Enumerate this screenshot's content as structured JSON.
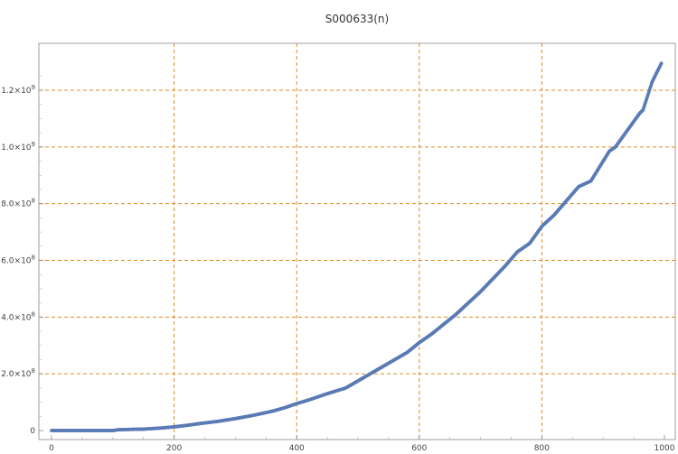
{
  "chart_data": {
    "type": "scatter",
    "title": "S000633(n)",
    "xlabel": "",
    "ylabel": "",
    "xlim": [
      0,
      1000
    ],
    "ylim": [
      0,
      1300000000
    ],
    "grid": true,
    "x_ticks": [
      0,
      200,
      400,
      600,
      800,
      1000
    ],
    "x_tick_labels": [
      "0",
      "200",
      "400",
      "600",
      "800",
      "1000"
    ],
    "y_ticks": [
      0,
      200000000,
      400000000,
      600000000,
      800000000,
      1000000000,
      1200000000
    ],
    "y_tick_labels": [
      {
        "mantissa": "0",
        "exponent": ""
      },
      {
        "mantissa": "2.0×10",
        "exponent": "8"
      },
      {
        "mantissa": "4.0×10",
        "exponent": "8"
      },
      {
        "mantissa": "6.0×10",
        "exponent": "8"
      },
      {
        "mantissa": "8.0×10",
        "exponent": "8"
      },
      {
        "mantissa": "1.0×10",
        "exponent": "9"
      },
      {
        "mantissa": "1.2×10",
        "exponent": "9"
      }
    ],
    "series": [
      {
        "color": "#5a7bb5",
        "x": [
          0,
          50,
          100,
          110,
          150,
          180,
          200,
          220,
          240,
          270,
          300,
          330,
          360,
          380,
          400,
          420,
          450,
          480,
          500,
          520,
          540,
          560,
          580,
          600,
          620,
          640,
          660,
          680,
          700,
          720,
          740,
          760,
          780,
          800,
          820,
          840,
          860,
          880,
          900,
          910,
          920,
          940,
          960,
          965,
          980,
          995
        ],
        "y": [
          0,
          0,
          0,
          3000000,
          5000000,
          9000000,
          13000000,
          18000000,
          24000000,
          32000000,
          42000000,
          54000000,
          68000000,
          80000000,
          95000000,
          108000000,
          130000000,
          150000000,
          175000000,
          200000000,
          225000000,
          250000000,
          275000000,
          310000000,
          340000000,
          375000000,
          410000000,
          450000000,
          490000000,
          535000000,
          580000000,
          630000000,
          660000000,
          720000000,
          760000000,
          810000000,
          860000000,
          880000000,
          950000000,
          985000000,
          1000000000,
          1060000000,
          1120000000,
          1130000000,
          1230000000,
          1295000000
        ]
      }
    ]
  }
}
